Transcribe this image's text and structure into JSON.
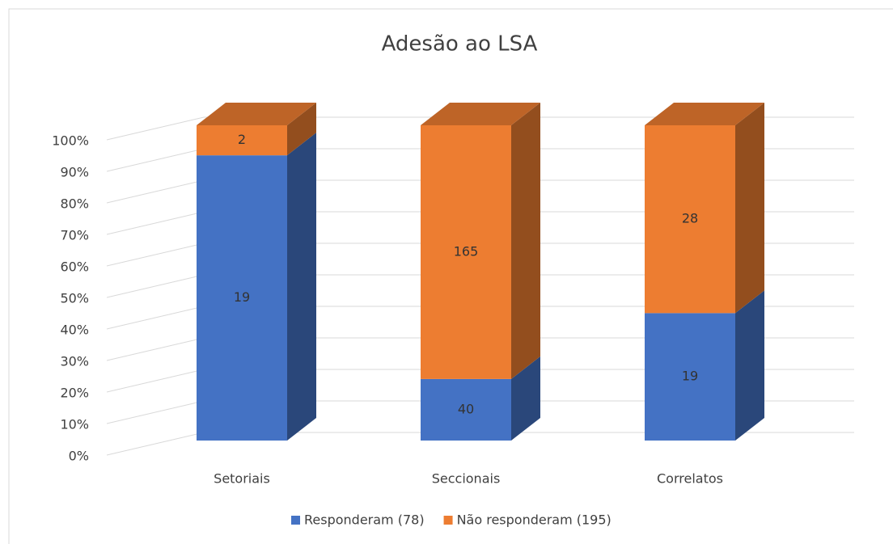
{
  "chart_data": {
    "type": "bar",
    "stacking": "percent",
    "title": "Adesão ao LSA",
    "categories": [
      "Setoriais",
      "Seccionais",
      "Correlatos"
    ],
    "series": [
      {
        "name": "Responderam (78)",
        "color": "#4472c4",
        "values": [
          19,
          40,
          19
        ]
      },
      {
        "name": "Não responderam (195)",
        "color": "#ed7d31",
        "values": [
          2,
          165,
          28
        ]
      }
    ],
    "ylim": [
      0,
      100
    ],
    "yticks": [
      {
        "value": 0,
        "label": "0%"
      },
      {
        "value": 10,
        "label": "10%"
      },
      {
        "value": 20,
        "label": "20%"
      },
      {
        "value": 30,
        "label": "30%"
      },
      {
        "value": 40,
        "label": "40%"
      },
      {
        "value": 50,
        "label": "50%"
      },
      {
        "value": 60,
        "label": "60%"
      },
      {
        "value": 70,
        "label": "70%"
      },
      {
        "value": 80,
        "label": "80%"
      },
      {
        "value": 90,
        "label": "90%"
      },
      {
        "value": 100,
        "label": "100%"
      }
    ],
    "grid": true,
    "legend": "bottom"
  }
}
